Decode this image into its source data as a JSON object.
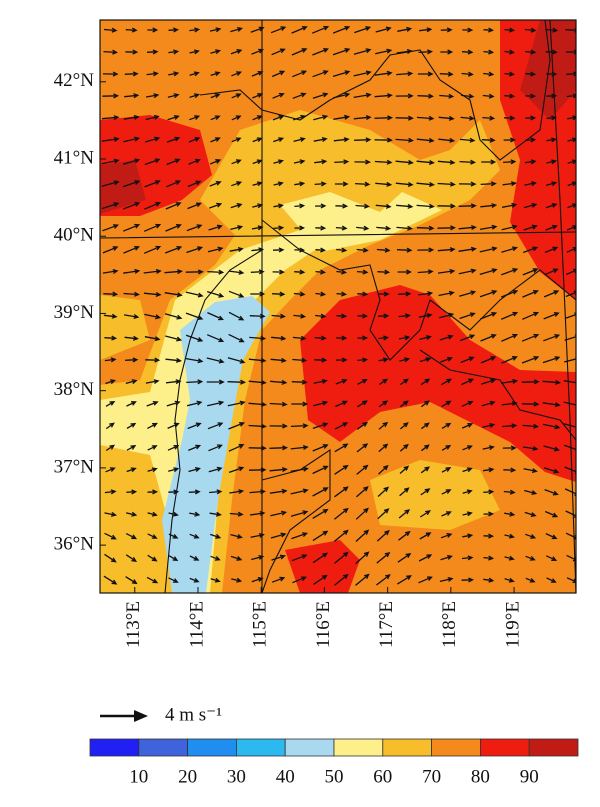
{
  "chart_data": {
    "type": "vector-field",
    "xlim": [
      112.45,
      119.98
    ],
    "ylim": [
      35.38,
      42.8
    ],
    "xticks": [
      {
        "value": 113,
        "label": "113°E"
      },
      {
        "value": 114,
        "label": "114°E"
      },
      {
        "value": 115,
        "label": "115°E"
      },
      {
        "value": 116,
        "label": "116°E"
      },
      {
        "value": 117,
        "label": "117°E"
      },
      {
        "value": 118,
        "label": "118°E"
      },
      {
        "value": 119,
        "label": "119°E"
      }
    ],
    "yticks": [
      {
        "value": 36,
        "label": "36°N"
      },
      {
        "value": 37,
        "label": "37°N"
      },
      {
        "value": 38,
        "label": "38°N"
      },
      {
        "value": 39,
        "label": "39°N"
      },
      {
        "value": 40,
        "label": "40°N"
      },
      {
        "value": 41,
        "label": "41°N"
      },
      {
        "value": 42,
        "label": "42°N"
      }
    ],
    "reference_vector": {
      "label": "4 m s⁻¹"
    },
    "colorbar": {
      "lim": [
        0,
        100
      ],
      "ticks": [
        10,
        20,
        30,
        40,
        50,
        60,
        70,
        80,
        90
      ],
      "colors": [
        "#2020f5",
        "#3f62dd",
        "#1f8ef0",
        "#2bb9f0",
        "#a9d9ef",
        "#fdf08a",
        "#f8bd2a",
        "#f58a1c",
        "#ee1d10",
        "#c11b16"
      ]
    }
  }
}
